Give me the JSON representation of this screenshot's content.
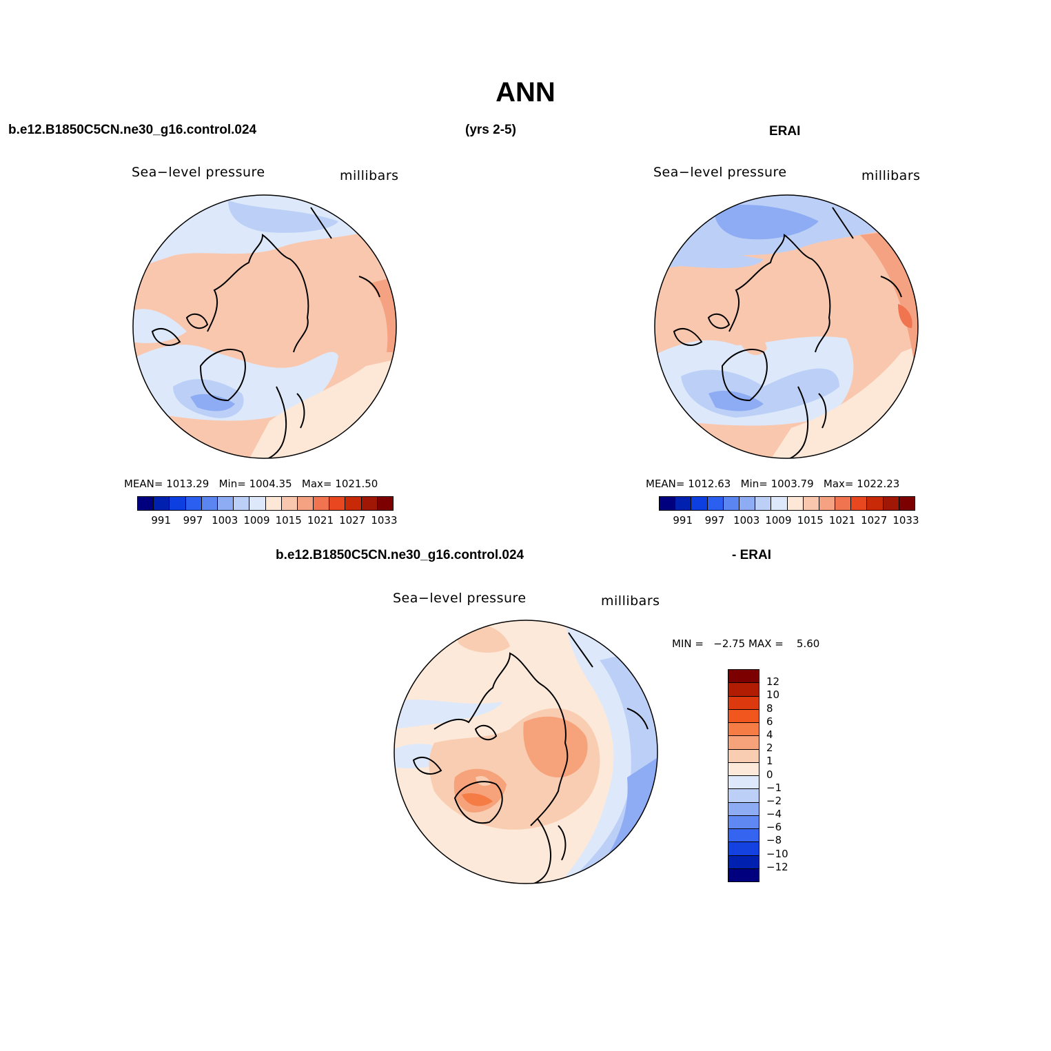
{
  "title": "ANN",
  "header": {
    "case_name": "b.e12.B1850C5CN.ne30_g16.control.024",
    "years": "(yrs 2-5)",
    "obs_name": "ERAI"
  },
  "panels": [
    {
      "variable": "Sea−level pressure",
      "units": "millibars",
      "stats": {
        "mean_label": "MEAN=",
        "mean": "1013.29",
        "min_label": "Min=",
        "min": "1004.35",
        "max_label": "Max=",
        "max": "1021.50"
      }
    },
    {
      "variable": "Sea−level pressure",
      "units": "millibars",
      "stats": {
        "mean_label": "MEAN=",
        "mean": "1012.63",
        "min_label": "Min=",
        "min": "1003.79",
        "max_label": "Max=",
        "max": "1022.23"
      }
    }
  ],
  "diff_header": {
    "case_name": "b.e12.B1850C5CN.ne30_g16.control.024",
    "minus_obs": "- ERAI"
  },
  "diff_panel": {
    "variable": "Sea−level pressure",
    "units": "millibars",
    "min_label": "MIN =",
    "min": "−2.75",
    "max_label": "MAX =",
    "max": "5.60"
  },
  "colorbar_abs": {
    "colors": [
      "#00007f",
      "#0020b0",
      "#0d3fe0",
      "#2a5ff0",
      "#5b86f2",
      "#8eacf4",
      "#bcd0f7",
      "#dde9fb",
      "#fde8d8",
      "#f9c7ae",
      "#f4a281",
      "#f07450",
      "#e8471f",
      "#c82a08",
      "#a01705",
      "#7d0000"
    ],
    "ticks": [
      "991",
      "997",
      "1003",
      "1009",
      "1015",
      "1021",
      "1027",
      "1033"
    ]
  },
  "colorbar_diff": {
    "colors": [
      "#7d0000",
      "#b01d03",
      "#dc3a0e",
      "#f0561d",
      "#f57c44",
      "#f6a27b",
      "#f9cdb1",
      "#fde9d9",
      "#dde9fb",
      "#bcd0f7",
      "#8eacf4",
      "#5f88f2",
      "#3565f0",
      "#1442e0",
      "#0020b0",
      "#00007f"
    ],
    "ticks": [
      "12",
      "10",
      "8",
      "6",
      "4",
      "2",
      "1",
      "0",
      "−1",
      "−2",
      "−4",
      "−6",
      "−8",
      "−10",
      "−12"
    ]
  },
  "chart_data": [
    {
      "type": "heatmap",
      "title": "Sea−level pressure",
      "units": "millibars",
      "source": "b.e12.B1850C5CN.ne30_g16.control.024 (yrs 2-5)",
      "projection": "polar stereographic (north)",
      "stats": {
        "mean": 1013.29,
        "min": 1004.35,
        "max": 1021.5
      },
      "levels": [
        991,
        994,
        997,
        1000,
        1003,
        1006,
        1009,
        1012,
        1015,
        1018,
        1021,
        1024,
        1027,
        1030,
        1033
      ]
    },
    {
      "type": "heatmap",
      "title": "Sea−level pressure",
      "units": "millibars",
      "source": "ERAI",
      "projection": "polar stereographic (north)",
      "stats": {
        "mean": 1012.63,
        "min": 1003.79,
        "max": 1022.23
      },
      "levels": [
        991,
        994,
        997,
        1000,
        1003,
        1006,
        1009,
        1012,
        1015,
        1018,
        1021,
        1024,
        1027,
        1030,
        1033
      ]
    },
    {
      "type": "heatmap",
      "title": "Sea−level pressure",
      "units": "millibars",
      "source": "b.e12.B1850C5CN.ne30_g16.control.024 - ERAI",
      "projection": "polar stereographic (north)",
      "stats": {
        "min": -2.75,
        "max": 5.6
      },
      "levels": [
        -12,
        -10,
        -8,
        -6,
        -4,
        -2,
        -1,
        0,
        1,
        2,
        4,
        6,
        8,
        10,
        12
      ]
    }
  ]
}
